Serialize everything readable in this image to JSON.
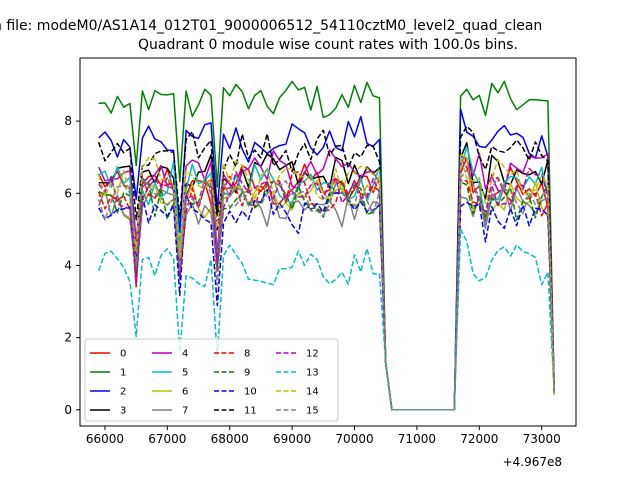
{
  "chart_data": {
    "type": "line",
    "suptitle": "n file: modeM0/AS1A14_012T01_9000006512_54110cztM0_level2_quad_clean",
    "title": "Quadrant 0 module wise count rates with 100.0s bins.",
    "xlabel": "",
    "ylabel": "",
    "offset_label": "+4.967e8",
    "xlim": [
      65600,
      73550
    ],
    "ylim": [
      -0.45,
      9.75
    ],
    "xticks": [
      66000,
      67000,
      68000,
      69000,
      70000,
      71000,
      72000,
      73000
    ],
    "xtick_labels": [
      "66000",
      "67000",
      "68000",
      "69000",
      "70000",
      "71000",
      "72000",
      "73000"
    ],
    "yticks": [
      0,
      2,
      4,
      6,
      8
    ],
    "ytick_labels": [
      "0",
      "2",
      "4",
      "6",
      "8"
    ],
    "grid": false,
    "legend_position": "lower-left",
    "x_start": 65900,
    "x_step": 100,
    "gap": {
      "x0": 70500,
      "x1": 71600
    },
    "series": [
      {
        "name": "0",
        "color": "#ff0000",
        "dash": "solid",
        "base": 6.2
      },
      {
        "name": "1",
        "color": "#008000",
        "dash": "solid",
        "base": 8.6
      },
      {
        "name": "2",
        "color": "#0000ff",
        "dash": "solid",
        "base": 7.5
      },
      {
        "name": "3",
        "color": "#000000",
        "dash": "solid",
        "base": 6.5
      },
      {
        "name": "4",
        "color": "#bf00bf",
        "dash": "solid",
        "base": 6.6
      },
      {
        "name": "5",
        "color": "#00bfbf",
        "dash": "solid",
        "base": 6.3
      },
      {
        "name": "6",
        "color": "#bfbf00",
        "dash": "solid",
        "base": 5.9
      },
      {
        "name": "7",
        "color": "#808080",
        "dash": "solid",
        "base": 5.7
      },
      {
        "name": "8",
        "color": "#ff0000",
        "dash": "dashed",
        "base": 6.0
      },
      {
        "name": "9",
        "color": "#008000",
        "dash": "dashed",
        "base": 5.8
      },
      {
        "name": "10",
        "color": "#0000ff",
        "dash": "dashed",
        "base": 5.5
      },
      {
        "name": "11",
        "color": "#000000",
        "dash": "dashed",
        "base": 7.2
      },
      {
        "name": "12",
        "color": "#bf00bf",
        "dash": "dashed",
        "base": 6.1
      },
      {
        "name": "13",
        "color": "#00bfbf",
        "dash": "dashed",
        "base": 4.0
      },
      {
        "name": "14",
        "color": "#bfbf00",
        "dash": "dashed",
        "base": 6.4
      },
      {
        "name": "15",
        "color": "#808080",
        "dash": "dashed",
        "base": 5.9
      }
    ]
  }
}
